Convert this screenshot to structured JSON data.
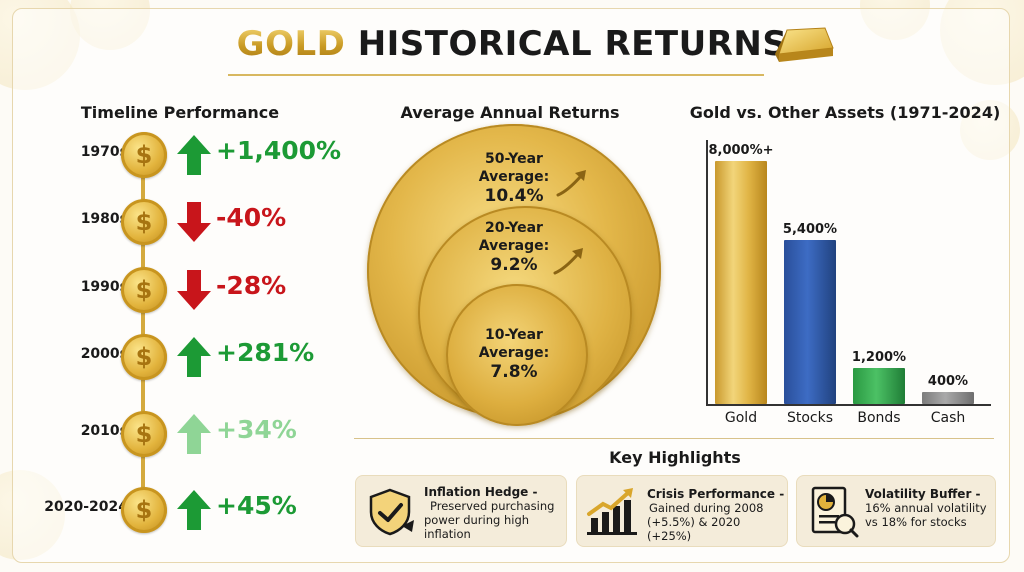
{
  "header": {
    "title_highlight": "GOLD",
    "title_rest": "HISTORICAL RETURNS"
  },
  "colors": {
    "gold": "#d4aa3e",
    "positive": "#1c9a35",
    "negative": "#c8151b",
    "stocks": "#2c56a6",
    "bonds": "#2fa84a",
    "cash": "#8a8a8a"
  },
  "chart_data": [
    {
      "type": "table",
      "title": "Timeline Performance",
      "rows": [
        {
          "decade": "1970s",
          "value": "+1,400%",
          "direction": "up"
        },
        {
          "decade": "1980s",
          "value": "-40%",
          "direction": "down"
        },
        {
          "decade": "1990s",
          "value": "-28%",
          "direction": "down"
        },
        {
          "decade": "2000s",
          "value": "+281%",
          "direction": "up"
        },
        {
          "decade": "2010s",
          "value": "+34%",
          "direction": "up-light"
        },
        {
          "decade": "2020-2024",
          "value": "+45%",
          "direction": "up"
        }
      ]
    },
    {
      "type": "table",
      "title": "Average Annual Returns",
      "rings": [
        {
          "label_1": "50-Year",
          "label_2": "Average:",
          "value": "10.4%"
        },
        {
          "label_1": "20-Year",
          "label_2": "Average:",
          "value": "9.2%"
        },
        {
          "label_1": "10-Year",
          "label_2": "Average:",
          "value": "7.8%"
        }
      ]
    },
    {
      "type": "bar",
      "title": "Gold vs. Other Assets (1971-2024)",
      "categories": [
        "Gold",
        "Stocks",
        "Bonds",
        "Cash"
      ],
      "values": [
        8000,
        5400,
        1200,
        400
      ],
      "data_labels": [
        "8,000%+",
        "5,400%",
        "1,200%",
        "400%"
      ],
      "ylim": [
        0,
        8700
      ]
    }
  ],
  "highlights": {
    "title": "Key Highlights",
    "items": [
      {
        "title": "Inflation Hedge -",
        "lines": [
          "Preserved purchasing",
          "power during high",
          "inflation"
        ],
        "icon": "shield-check-icon"
      },
      {
        "title": "Crisis Performance -",
        "lines": [
          "Gained during 2008",
          "(+5.5%) & 2020 (+25%)"
        ],
        "icon": "growth-chart-icon"
      },
      {
        "title": "Volatility Buffer -",
        "lines": [
          "16% annual volatility",
          "vs 18% for stocks"
        ],
        "icon": "report-icon"
      }
    ]
  }
}
